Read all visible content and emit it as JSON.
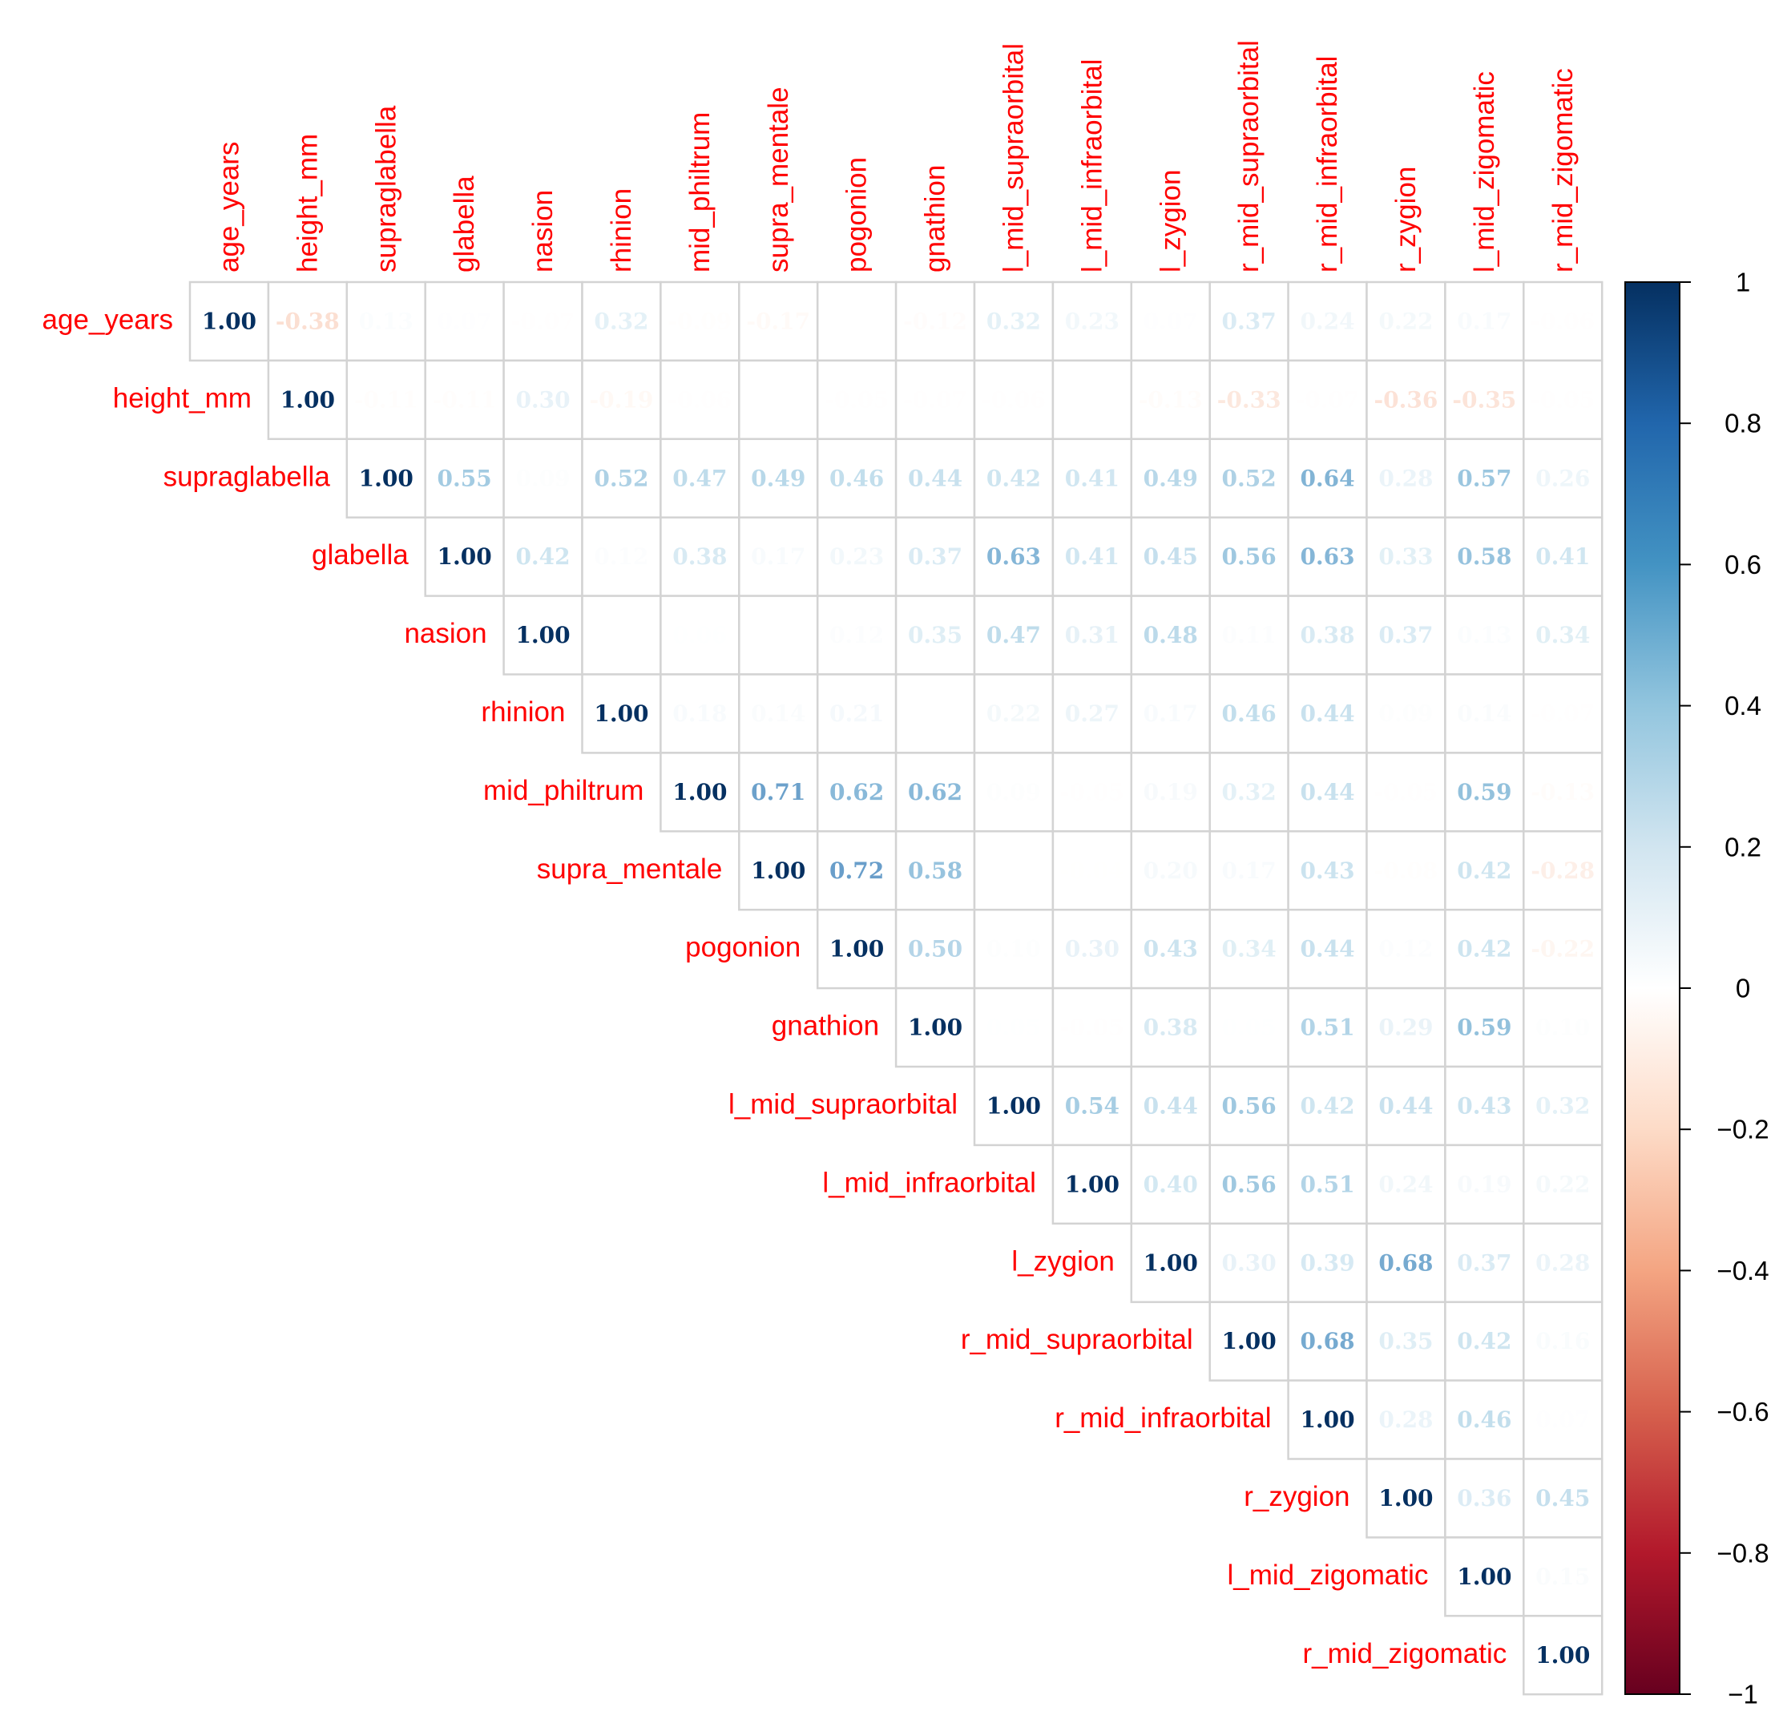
{
  "chart_data": {
    "type": "heatmap",
    "title": "",
    "variables": [
      "age_years",
      "height_mm",
      "supraglabella",
      "glabella",
      "nasion",
      "rhinion",
      "mid_philtrum",
      "supra_mentale",
      "pogonion",
      "gnathion",
      "l_mid_supraorbital",
      "l_mid_infraorbital",
      "l_zygion",
      "r_mid_supraorbital",
      "r_mid_infraorbital",
      "r_zygion",
      "l_mid_zigomatic",
      "r_mid_zigomatic"
    ],
    "matrix_upper": [
      [
        "1.00",
        "-0.38",
        "0.13",
        "0.07",
        "-0.07",
        "0.32",
        "-0.09",
        "-0.17",
        "-0.02",
        "-0.12",
        "0.32",
        "0.23",
        "0.07",
        "0.37",
        "0.24",
        "0.22",
        "0.17",
        "-0.06"
      ],
      [
        "1.00",
        "-0.11",
        "-0.11",
        "0.30",
        "-0.19",
        "-0.06",
        "0.03",
        "-0.05",
        "-0.07",
        "-0.06",
        "",
        "-0.13",
        "-0.33",
        "-0.07",
        "-0.36",
        "-0.35",
        "-0.05"
      ],
      [
        "1.00",
        "0.55",
        "0.09",
        "0.52",
        "0.47",
        "0.49",
        "0.46",
        "0.44",
        "0.42",
        "0.41",
        "0.49",
        "0.52",
        "0.64",
        "0.28",
        "0.57",
        "0.26"
      ],
      [
        "1.00",
        "0.42",
        "0.12",
        "0.38",
        "0.17",
        "0.23",
        "0.37",
        "0.63",
        "0.41",
        "0.45",
        "0.56",
        "0.63",
        "0.33",
        "0.58",
        "0.41"
      ],
      [
        "1.00",
        "-0.02",
        "0.06",
        "0.03",
        "0.12",
        "0.35",
        "0.47",
        "0.31",
        "0.48",
        "0.11",
        "0.38",
        "0.37",
        "0.13",
        "0.34"
      ],
      [
        "1.00",
        "0.18",
        "0.14",
        "0.21",
        "0.03",
        "0.22",
        "0.27",
        "0.17",
        "0.46",
        "0.44",
        "0.09",
        "0.14",
        "-0.07"
      ],
      [
        "1.00",
        "0.71",
        "0.62",
        "0.62",
        "0.09",
        "-0.05",
        "0.19",
        "0.32",
        "0.44",
        "-0.05",
        "0.59",
        "-0.13"
      ],
      [
        "1.00",
        "0.72",
        "0.58",
        "-0.02",
        "-0.04",
        "0.20",
        "0.17",
        "0.43",
        "-0.08",
        "0.42",
        "-0.28"
      ],
      [
        "1.00",
        "0.50",
        "0.10",
        "0.30",
        "0.43",
        "0.34",
        "0.44",
        "0.12",
        "0.42",
        "-0.22"
      ],
      [
        "1.00",
        "0.05",
        "-0.05",
        "0.38",
        "0.05",
        "0.51",
        "0.29",
        "0.59",
        "0.10"
      ],
      [
        "1.00",
        "0.54",
        "0.44",
        "0.56",
        "0.42",
        "0.44",
        "0.43",
        "0.32"
      ],
      [
        "1.00",
        "0.40",
        "0.56",
        "0.51",
        "0.24",
        "0.19",
        "0.22"
      ],
      [
        "1.00",
        "0.30",
        "0.39",
        "0.68",
        "0.37",
        "0.28"
      ],
      [
        "1.00",
        "0.68",
        "0.35",
        "0.42",
        "0.16"
      ],
      [
        "1.00",
        "0.28",
        "0.46",
        "0.07"
      ],
      [
        "1.00",
        "0.36",
        "0.45"
      ],
      [
        "1.00",
        "0.15"
      ],
      [
        "1.00"
      ]
    ],
    "colorbar": {
      "min": -1,
      "max": 1,
      "ticks": [
        "1",
        "0.8",
        "0.6",
        "0.4",
        "0.2",
        "0",
        "−0.2",
        "−0.4",
        "−0.6",
        "−0.8",
        "−1"
      ]
    },
    "palette": [
      "#67001f",
      "#b2182b",
      "#d6604d",
      "#f4a582",
      "#fddbc7",
      "#ffffff",
      "#d1e5f0",
      "#92c5de",
      "#4393c3",
      "#2166ac",
      "#053061"
    ],
    "label_color": "#ff0000"
  }
}
